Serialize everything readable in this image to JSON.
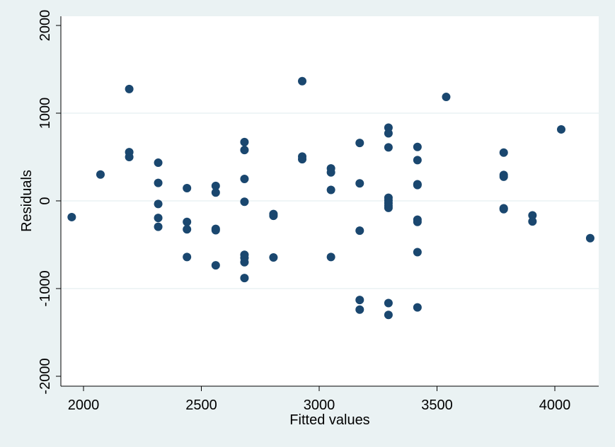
{
  "chart_data": {
    "type": "scatter",
    "title": "",
    "xlabel": "Fitted values",
    "ylabel": "Residuals",
    "xlim": [
      1950,
      4150
    ],
    "ylim": [
      -2000,
      2000
    ],
    "xticks": [
      2000,
      2500,
      3000,
      3500,
      4000
    ],
    "yticks": [
      -2000,
      -1000,
      0,
      1000,
      2000
    ],
    "xtick_labels": [
      "2000",
      "2500",
      "3000",
      "3500",
      "4000"
    ],
    "ytick_labels": [
      "-2000",
      "-1000",
      "0",
      "1000",
      "2000"
    ],
    "grid": "horizontal",
    "marker_color": "#1a476f",
    "plot_background": "#ffffff",
    "outer_background": "#eaf2f3",
    "grid_color": "#eaf2f3",
    "points": [
      {
        "x": 1950,
        "y": -185
      },
      {
        "x": 2072,
        "y": 300
      },
      {
        "x": 2194,
        "y": 1275
      },
      {
        "x": 2194,
        "y": 555
      },
      {
        "x": 2194,
        "y": 500
      },
      {
        "x": 2317,
        "y": 435
      },
      {
        "x": 2317,
        "y": 205
      },
      {
        "x": 2317,
        "y": -35
      },
      {
        "x": 2317,
        "y": -195
      },
      {
        "x": 2317,
        "y": -295
      },
      {
        "x": 2439,
        "y": 145
      },
      {
        "x": 2439,
        "y": -240
      },
      {
        "x": 2439,
        "y": -325
      },
      {
        "x": 2439,
        "y": -640
      },
      {
        "x": 2561,
        "y": 170
      },
      {
        "x": 2561,
        "y": 95
      },
      {
        "x": 2561,
        "y": -320
      },
      {
        "x": 2561,
        "y": -335
      },
      {
        "x": 2561,
        "y": -735
      },
      {
        "x": 2683,
        "y": 670
      },
      {
        "x": 2683,
        "y": 580
      },
      {
        "x": 2683,
        "y": 250
      },
      {
        "x": 2683,
        "y": -10
      },
      {
        "x": 2683,
        "y": -615
      },
      {
        "x": 2683,
        "y": -650
      },
      {
        "x": 2683,
        "y": -700
      },
      {
        "x": 2683,
        "y": -880
      },
      {
        "x": 2806,
        "y": -150
      },
      {
        "x": 2806,
        "y": -170
      },
      {
        "x": 2806,
        "y": -645
      },
      {
        "x": 2928,
        "y": 1365
      },
      {
        "x": 2928,
        "y": 505
      },
      {
        "x": 2928,
        "y": 475
      },
      {
        "x": 3050,
        "y": 370
      },
      {
        "x": 3050,
        "y": 325
      },
      {
        "x": 3050,
        "y": 125
      },
      {
        "x": 3050,
        "y": -640
      },
      {
        "x": 3172,
        "y": 660
      },
      {
        "x": 3172,
        "y": 200
      },
      {
        "x": 3172,
        "y": -340
      },
      {
        "x": 3172,
        "y": -1130
      },
      {
        "x": 3172,
        "y": -1240
      },
      {
        "x": 3294,
        "y": 835
      },
      {
        "x": 3294,
        "y": 770
      },
      {
        "x": 3294,
        "y": 610
      },
      {
        "x": 3294,
        "y": 35
      },
      {
        "x": 3294,
        "y": 5
      },
      {
        "x": 3294,
        "y": -25
      },
      {
        "x": 3294,
        "y": -55
      },
      {
        "x": 3294,
        "y": -80
      },
      {
        "x": 3294,
        "y": -1165
      },
      {
        "x": 3294,
        "y": -1300
      },
      {
        "x": 3417,
        "y": 615
      },
      {
        "x": 3417,
        "y": 465
      },
      {
        "x": 3417,
        "y": 190
      },
      {
        "x": 3417,
        "y": 180
      },
      {
        "x": 3417,
        "y": -215
      },
      {
        "x": 3417,
        "y": -240
      },
      {
        "x": 3417,
        "y": -585
      },
      {
        "x": 3417,
        "y": -1215
      },
      {
        "x": 3539,
        "y": 1185
      },
      {
        "x": 3783,
        "y": 550
      },
      {
        "x": 3783,
        "y": 295
      },
      {
        "x": 3783,
        "y": 275
      },
      {
        "x": 3783,
        "y": -85
      },
      {
        "x": 3783,
        "y": -95
      },
      {
        "x": 3905,
        "y": -165
      },
      {
        "x": 3905,
        "y": -235
      },
      {
        "x": 4027,
        "y": 815
      },
      {
        "x": 4150,
        "y": -425
      }
    ]
  }
}
